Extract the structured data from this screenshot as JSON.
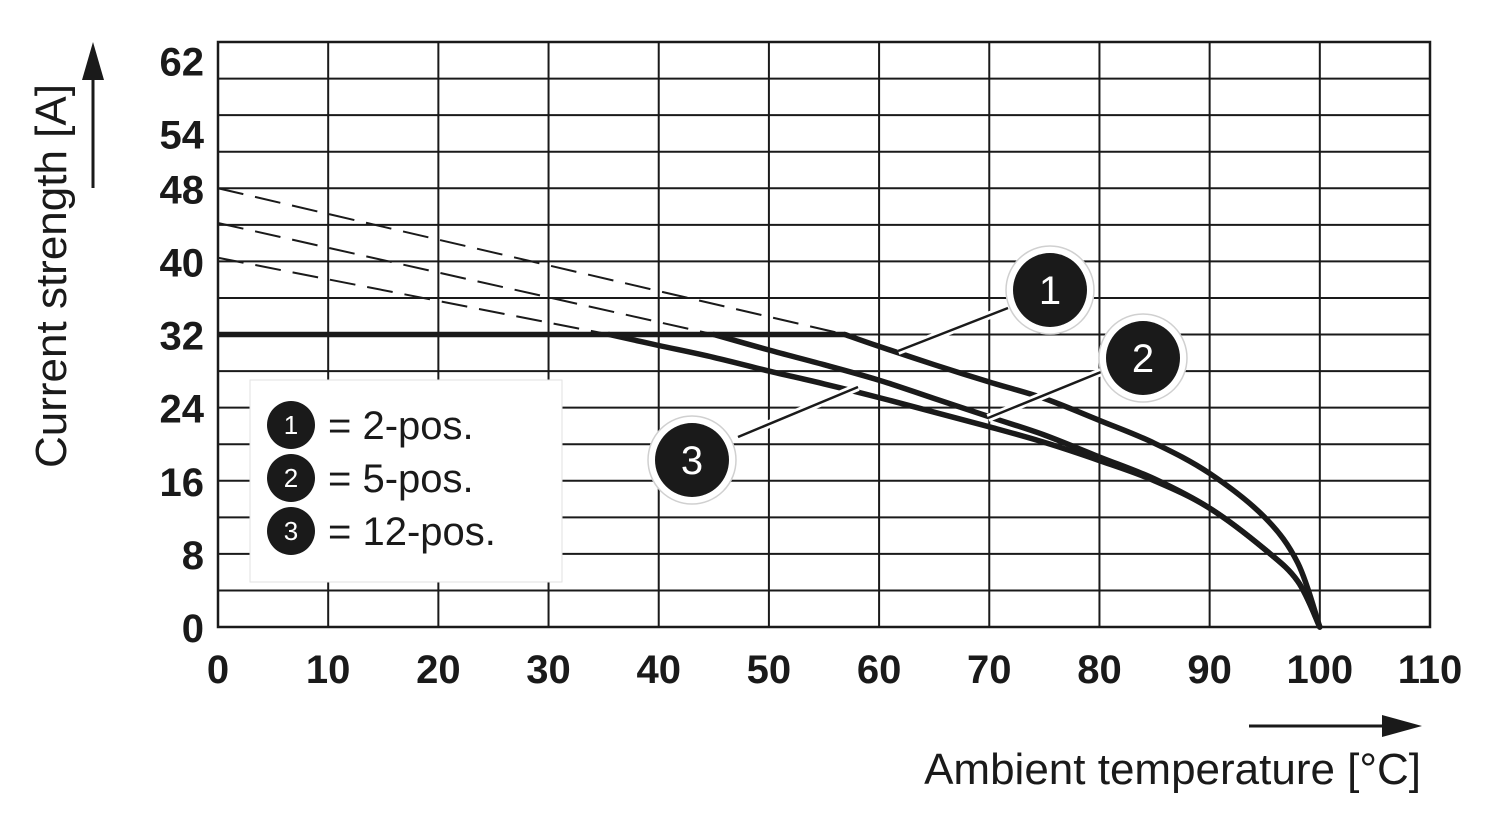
{
  "chart_data": {
    "type": "line",
    "xlabel": "Ambient temperature [°C]",
    "ylabel": "Current strength [A]",
    "xlim": [
      0,
      110
    ],
    "ylim": [
      0,
      64
    ],
    "x_ticks": [
      "0",
      "10",
      "20",
      "30",
      "40",
      "50",
      "60",
      "70",
      "80",
      "90",
      "100",
      "110"
    ],
    "y_ticks": [
      {
        "value": 0,
        "label": "0"
      },
      {
        "value": 8,
        "label": "8"
      },
      {
        "value": 16,
        "label": "16"
      },
      {
        "value": 24,
        "label": "24"
      },
      {
        "value": 32,
        "label": "32"
      },
      {
        "value": 40,
        "label": "40"
      },
      {
        "value": 48,
        "label": "48"
      },
      {
        "value": 54,
        "label": "54"
      },
      {
        "value": 62,
        "label": "62"
      }
    ],
    "grid": true,
    "legend_position": "bottom-left",
    "constant_limit": {
      "y": 32,
      "x": [
        0,
        56.9
      ]
    },
    "series": [
      {
        "name": "1",
        "legend": "= 2-pos.",
        "points": [
          [
            56.9,
            32
          ],
          [
            60,
            30.7
          ],
          [
            65,
            28.7
          ],
          [
            70,
            26.8
          ],
          [
            75,
            25
          ],
          [
            80,
            22.6
          ],
          [
            85,
            20.1
          ],
          [
            90,
            16.8
          ],
          [
            95,
            12
          ],
          [
            98,
            7
          ],
          [
            100,
            0
          ]
        ],
        "dashed_extension": [
          [
            0,
            48
          ],
          [
            56.9,
            32
          ]
        ]
      },
      {
        "name": "2",
        "legend": "= 5-pos.",
        "points": [
          [
            45,
            32
          ],
          [
            50,
            30.3
          ],
          [
            55,
            28.7
          ],
          [
            60,
            27
          ],
          [
            65,
            25
          ],
          [
            70,
            23
          ],
          [
            75,
            21
          ],
          [
            80,
            18.6
          ],
          [
            85,
            16.2
          ],
          [
            90,
            13
          ],
          [
            95,
            8.5
          ],
          [
            98,
            5
          ],
          [
            100,
            0
          ]
        ],
        "dashed_extension": [
          [
            0,
            44.2
          ],
          [
            45,
            32
          ]
        ]
      },
      {
        "name": "3",
        "legend": "= 12-pos.",
        "points": [
          [
            35.5,
            32
          ],
          [
            40,
            30.8
          ],
          [
            45,
            29.5
          ],
          [
            50,
            28
          ],
          [
            55,
            26.6
          ],
          [
            60,
            25.1
          ],
          [
            65,
            23.5
          ],
          [
            70,
            21.9
          ],
          [
            75,
            20.2
          ],
          [
            80,
            18.2
          ],
          [
            85,
            16
          ],
          [
            90,
            13
          ],
          [
            95,
            8.5
          ],
          [
            98,
            5
          ],
          [
            100,
            0
          ]
        ],
        "dashed_extension": [
          [
            0,
            40.4
          ],
          [
            35.5,
            32
          ]
        ]
      }
    ]
  }
}
